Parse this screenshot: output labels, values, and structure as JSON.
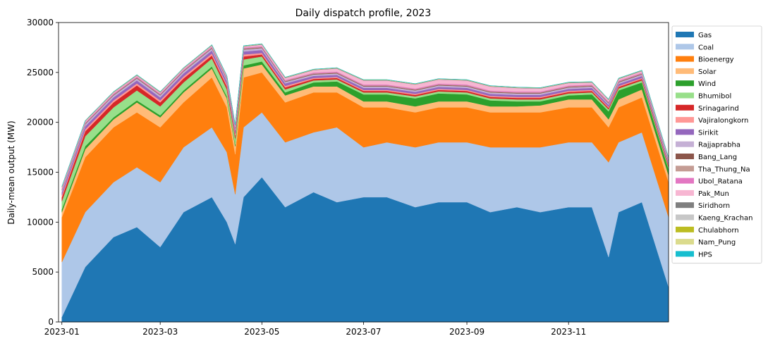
{
  "chart_data": {
    "type": "area",
    "title": "Daily dispatch profile, 2023",
    "xlabel": "",
    "ylabel": "Daily-mean output (MW)",
    "xlim": [
      "2022-12-30",
      "2023-12-31"
    ],
    "ylim": [
      0,
      30000
    ],
    "x_ticks": [
      "2023-01",
      "2023-03",
      "2023-05",
      "2023-07",
      "2023-09",
      "2023-11"
    ],
    "y_ticks": [
      0,
      5000,
      10000,
      15000,
      20000,
      25000,
      30000
    ],
    "grid": false,
    "legend_position": "outside-right",
    "x": [
      "2023-01-01",
      "2023-01-15",
      "2023-02-01",
      "2023-02-15",
      "2023-03-01",
      "2023-03-15",
      "2023-04-01",
      "2023-04-10",
      "2023-04-15",
      "2023-04-20",
      "2023-05-01",
      "2023-05-15",
      "2023-06-01",
      "2023-06-15",
      "2023-07-01",
      "2023-07-15",
      "2023-08-01",
      "2023-08-15",
      "2023-09-01",
      "2023-09-15",
      "2023-10-01",
      "2023-10-15",
      "2023-11-01",
      "2023-11-15",
      "2023-11-25",
      "2023-12-01",
      "2023-12-15",
      "2023-12-31"
    ],
    "series": [
      {
        "name": "Gas",
        "color": "#1f77b4",
        "values": [
          500,
          5500,
          8500,
          9500,
          7500,
          11000,
          12500,
          10000,
          7800,
          12500,
          14500,
          11500,
          13000,
          12000,
          12500,
          12500,
          11500,
          12000,
          12000,
          11000,
          11500,
          11000,
          11500,
          11500,
          6500,
          11000,
          12000,
          3500
        ]
      },
      {
        "name": "Coal",
        "color": "#aec7e8",
        "values": [
          5500,
          5500,
          5500,
          6000,
          6500,
          6500,
          7000,
          7000,
          5000,
          7000,
          6500,
          6500,
          6000,
          7500,
          5000,
          5500,
          6000,
          6000,
          6000,
          6500,
          6000,
          6500,
          6500,
          6500,
          9500,
          7000,
          7000,
          7000
        ]
      },
      {
        "name": "Bioenergy",
        "color": "#ff7f0e",
        "values": [
          4500,
          5500,
          5500,
          5500,
          5500,
          4500,
          5000,
          4500,
          4000,
          5000,
          4000,
          4000,
          4000,
          3500,
          4000,
          3500,
          3500,
          3500,
          3500,
          3500,
          3500,
          3500,
          3500,
          3500,
          3500,
          3500,
          3500,
          3500
        ]
      },
      {
        "name": "Solar",
        "color": "#ffbb78",
        "values": [
          500,
          800,
          800,
          1000,
          1000,
          1000,
          900,
          900,
          800,
          900,
          800,
          700,
          600,
          600,
          600,
          600,
          600,
          600,
          600,
          600,
          600,
          700,
          800,
          800,
          800,
          800,
          800,
          700
        ]
      },
      {
        "name": "Wind",
        "color": "#2ca02c",
        "values": [
          300,
          300,
          200,
          200,
          200,
          200,
          200,
          200,
          200,
          300,
          300,
          300,
          400,
          500,
          700,
          700,
          800,
          800,
          700,
          600,
          500,
          400,
          400,
          500,
          800,
          900,
          700,
          600
        ]
      },
      {
        "name": "Bhumibol",
        "color": "#98df8a",
        "values": [
          800,
          1000,
          1000,
          1000,
          900,
          800,
          800,
          700,
          600,
          600,
          500,
          300,
          200,
          200,
          200,
          200,
          200,
          200,
          200,
          200,
          200,
          200,
          200,
          200,
          200,
          200,
          200,
          200
        ]
      },
      {
        "name": "Srinagarind",
        "color": "#d62728",
        "values": [
          400,
          500,
          500,
          500,
          400,
          400,
          300,
          300,
          300,
          300,
          200,
          200,
          150,
          150,
          150,
          150,
          150,
          150,
          150,
          150,
          150,
          150,
          150,
          150,
          150,
          150,
          150,
          150
        ]
      },
      {
        "name": "Vajiralongkorn",
        "color": "#ff9896",
        "values": [
          200,
          200,
          200,
          200,
          200,
          200,
          200,
          200,
          200,
          200,
          150,
          150,
          100,
          100,
          100,
          100,
          100,
          100,
          100,
          100,
          100,
          100,
          100,
          100,
          100,
          100,
          100,
          100
        ]
      },
      {
        "name": "Sirikit",
        "color": "#9467bd",
        "values": [
          300,
          300,
          300,
          300,
          300,
          300,
          300,
          300,
          300,
          300,
          300,
          250,
          200,
          200,
          200,
          200,
          200,
          200,
          200,
          200,
          200,
          200,
          200,
          200,
          200,
          200,
          200,
          200
        ]
      },
      {
        "name": "Rajjaprabha",
        "color": "#c5b0d5",
        "values": [
          200,
          200,
          200,
          200,
          200,
          200,
          200,
          200,
          200,
          200,
          200,
          150,
          150,
          150,
          150,
          150,
          150,
          150,
          150,
          150,
          150,
          150,
          150,
          150,
          150,
          150,
          150,
          150
        ]
      },
      {
        "name": "Bang_Lang",
        "color": "#8c564b",
        "values": [
          60,
          60,
          60,
          60,
          60,
          60,
          60,
          60,
          60,
          60,
          60,
          60,
          60,
          60,
          60,
          60,
          60,
          60,
          60,
          60,
          60,
          60,
          60,
          60,
          60,
          60,
          60,
          60
        ]
      },
      {
        "name": "Tha_Thung_Na",
        "color": "#c49c94",
        "values": [
          50,
          50,
          50,
          50,
          50,
          50,
          50,
          50,
          50,
          50,
          50,
          50,
          50,
          50,
          50,
          50,
          50,
          50,
          50,
          50,
          50,
          50,
          50,
          50,
          50,
          50,
          50,
          50
        ]
      },
      {
        "name": "Ubol_Ratana",
        "color": "#e377c2",
        "values": [
          80,
          80,
          80,
          80,
          80,
          80,
          80,
          80,
          80,
          80,
          80,
          80,
          80,
          80,
          80,
          80,
          80,
          80,
          80,
          80,
          80,
          80,
          80,
          80,
          80,
          80,
          80,
          80
        ]
      },
      {
        "name": "Pak_Mun",
        "color": "#f7b6d2",
        "values": [
          100,
          100,
          100,
          100,
          100,
          100,
          100,
          100,
          100,
          100,
          150,
          200,
          250,
          300,
          400,
          400,
          400,
          400,
          400,
          400,
          350,
          300,
          250,
          200,
          150,
          150,
          150,
          100
        ]
      },
      {
        "name": "Siridhorn",
        "color": "#7f7f7f",
        "values": [
          30,
          30,
          30,
          30,
          30,
          30,
          30,
          30,
          30,
          30,
          30,
          30,
          30,
          30,
          30,
          30,
          30,
          30,
          30,
          30,
          30,
          30,
          30,
          30,
          30,
          30,
          30,
          30
        ]
      },
      {
        "name": "Kaeng_Krachan",
        "color": "#c7c7c7",
        "values": [
          20,
          20,
          20,
          20,
          20,
          20,
          20,
          20,
          20,
          20,
          20,
          20,
          20,
          20,
          20,
          20,
          20,
          20,
          20,
          20,
          20,
          20,
          20,
          20,
          20,
          20,
          20,
          20
        ]
      },
      {
        "name": "Chulabhorn",
        "color": "#bcbd22",
        "values": [
          20,
          20,
          20,
          20,
          20,
          20,
          20,
          20,
          20,
          20,
          20,
          20,
          20,
          20,
          20,
          20,
          20,
          20,
          20,
          20,
          20,
          20,
          20,
          20,
          20,
          20,
          20,
          20
        ]
      },
      {
        "name": "Nam_Pung",
        "color": "#dbdb8d",
        "values": [
          10,
          10,
          10,
          10,
          10,
          10,
          10,
          10,
          10,
          10,
          10,
          10,
          10,
          10,
          10,
          10,
          10,
          10,
          10,
          10,
          10,
          10,
          10,
          10,
          10,
          10,
          10,
          10
        ]
      },
      {
        "name": "HPS",
        "color": "#17becf",
        "values": [
          10,
          10,
          10,
          10,
          10,
          10,
          10,
          10,
          10,
          10,
          10,
          10,
          10,
          10,
          10,
          10,
          10,
          10,
          10,
          10,
          10,
          10,
          10,
          10,
          10,
          10,
          10,
          10
        ]
      }
    ]
  }
}
